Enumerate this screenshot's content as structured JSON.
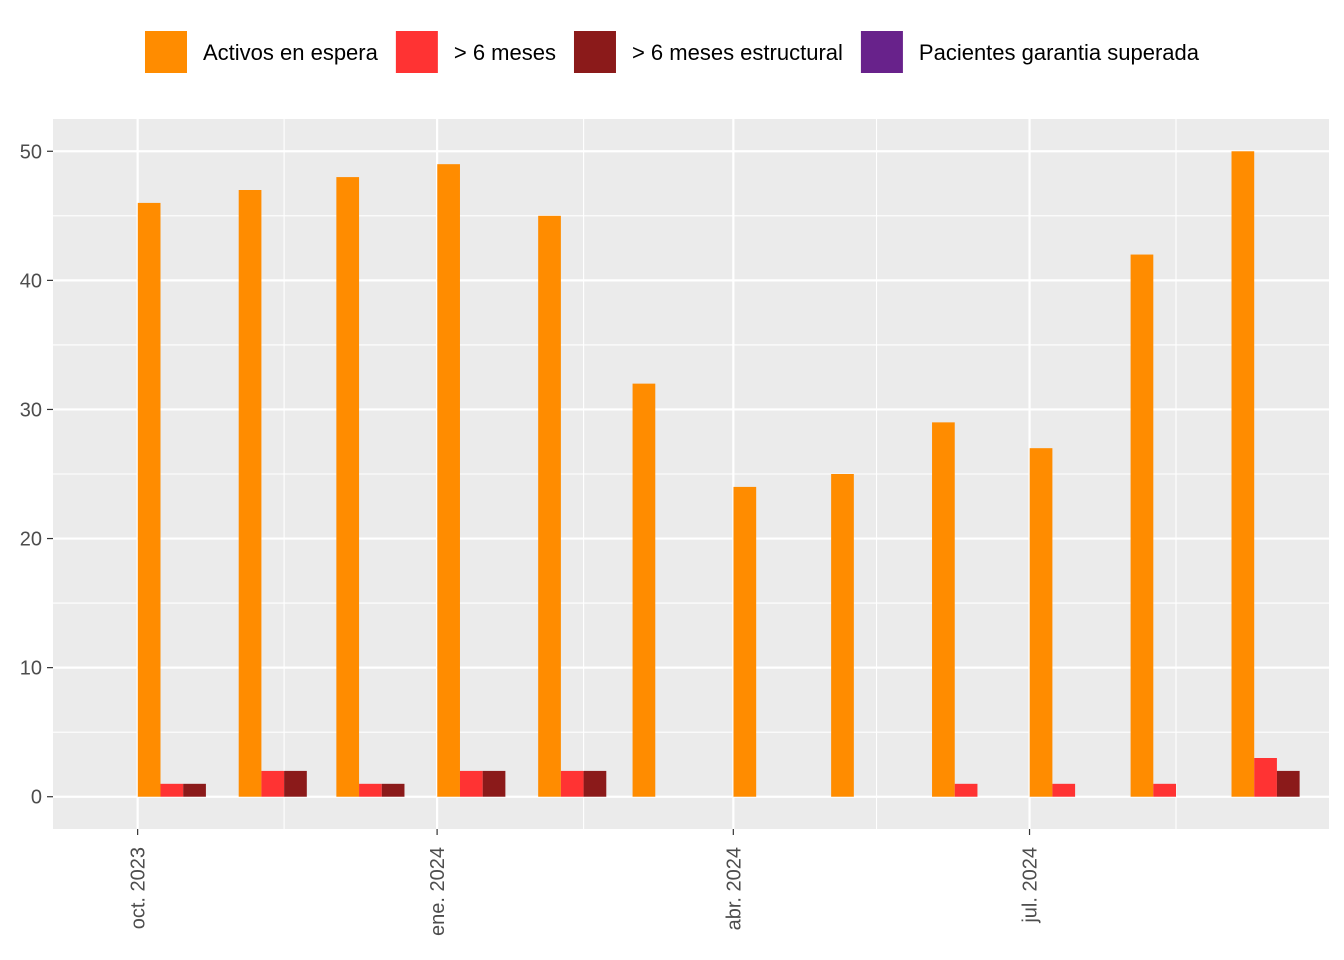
{
  "colors": {
    "panel_background": "#EBEBEB",
    "grid_line": "#FFFFFF",
    "axis_text": "#4D4D4D"
  },
  "legend": {
    "placement": "top",
    "items": [
      {
        "label": "Activos en espera",
        "color": "#FF8C00"
      },
      {
        "label": "> 6 meses",
        "color": "#FF3333"
      },
      {
        "label": "> 6 meses estructural",
        "color": "#8B1A1A"
      },
      {
        "label": "Pacientes garantia superada",
        "color": "#68228B"
      }
    ]
  },
  "chart_data": {
    "type": "bar",
    "grid": true,
    "legend_placement": "top",
    "x_axis": {
      "type": "date",
      "tick_labels": [
        "oct. 2023",
        "ene. 2024",
        "abr. 2024",
        "jul. 2024"
      ],
      "tick_dates": [
        "2023-10-01",
        "2024-01-01",
        "2024-04-01",
        "2024-07-01"
      ],
      "minor_dates": [
        "2023-11-15",
        "2024-02-15",
        "2024-05-15",
        "2024-08-15"
      ],
      "label_rotation": -90
    },
    "y_axis": {
      "ylim": [
        -2.5,
        52.5
      ],
      "ticks": [
        0,
        10,
        20,
        30,
        40,
        50
      ],
      "tick_labels": [
        "0",
        "10",
        "20",
        "30",
        "40",
        "50"
      ],
      "minor_ticks": [
        5,
        15,
        25,
        35,
        45
      ]
    },
    "x": [
      "2023-10-01",
      "2023-11-01",
      "2023-12-01",
      "2024-01-01",
      "2024-02-01",
      "2024-03-01",
      "2024-04-01",
      "2024-05-01",
      "2024-06-01",
      "2024-07-01",
      "2024-08-01",
      "2024-09-01"
    ],
    "series": [
      {
        "name": "Activos en espera",
        "color": "#FF8C00",
        "values": [
          46,
          47,
          48,
          49,
          45,
          32,
          24,
          25,
          29,
          27,
          42,
          50
        ]
      },
      {
        "name": "> 6 meses",
        "color": "#FF3333",
        "values": [
          1,
          2,
          1,
          2,
          2,
          0,
          0,
          0,
          1,
          1,
          1,
          3
        ]
      },
      {
        "name": "> 6 meses estructural",
        "color": "#8B1A1A",
        "values": [
          1,
          2,
          1,
          2,
          2,
          0,
          0,
          0,
          0,
          0,
          0,
          2
        ]
      },
      {
        "name": "Pacientes garantia superada",
        "color": "#68228B",
        "values": [
          0,
          0,
          0,
          0,
          0,
          0,
          0,
          0,
          0,
          0,
          0,
          0
        ]
      }
    ]
  }
}
